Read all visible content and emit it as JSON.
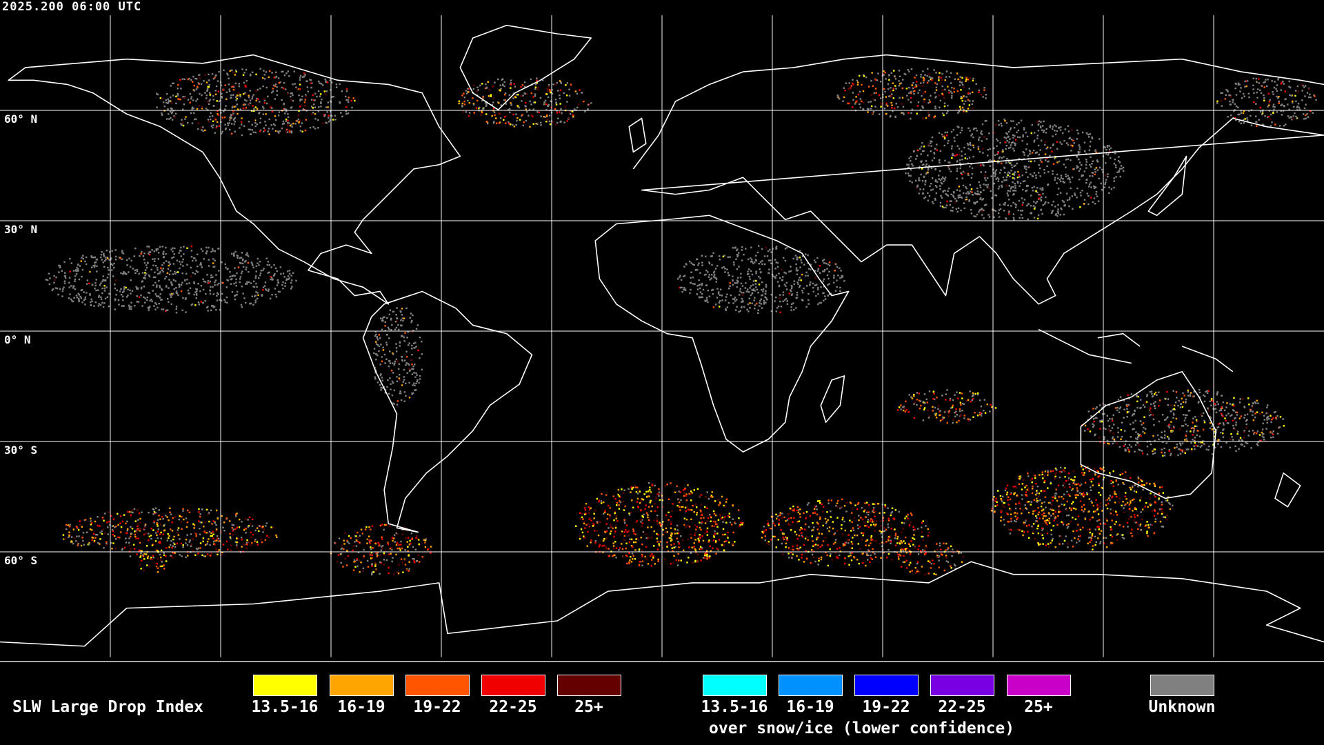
{
  "timestamp": "2025.200 06:00 UTC",
  "lat_labels": [
    "60° N",
    "30° N",
    "0° N",
    "30° S",
    "60° S"
  ],
  "legend": {
    "title": "SLW Large Drop Index",
    "normal": [
      {
        "label": "13.5-16",
        "color": "#ffff00"
      },
      {
        "label": "16-19",
        "color": "#ffa500"
      },
      {
        "label": "19-22",
        "color": "#ff5500"
      },
      {
        "label": "22-25",
        "color": "#f00000"
      },
      {
        "label": "25+",
        "color": "#640000"
      }
    ],
    "snow_ice": [
      {
        "label": "13.5-16",
        "color": "#00ffff"
      },
      {
        "label": "16-19",
        "color": "#0090ff"
      },
      {
        "label": "19-22",
        "color": "#0000ff"
      },
      {
        "label": "22-25",
        "color": "#7800e0"
      },
      {
        "label": "25+",
        "color": "#c800c8"
      }
    ],
    "snow_ice_caption": "over snow/ice (lower confidence)",
    "unknown": {
      "label": "Unknown",
      "color": "#808080"
    }
  }
}
